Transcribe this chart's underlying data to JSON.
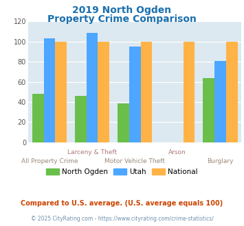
{
  "title_line1": "2019 North Ogden",
  "title_line2": "Property Crime Comparison",
  "north_ogden": [
    48,
    46,
    39,
    0,
    64
  ],
  "utah": [
    103,
    109,
    95,
    0,
    81
  ],
  "national": [
    100,
    100,
    100,
    100,
    100
  ],
  "colors": {
    "north_ogden": "#6abf4b",
    "utah": "#4da6ff",
    "national": "#ffb347"
  },
  "ylim": [
    0,
    120
  ],
  "yticks": [
    0,
    20,
    40,
    60,
    80,
    100,
    120
  ],
  "bg_color": "#dce9f0",
  "title_color": "#1a6fad",
  "xlabel_color_row1": "#b07080",
  "xlabel_color_row2": "#a08878",
  "legend_labels": [
    "North Ogden",
    "Utah",
    "National"
  ],
  "footnote1": "Compared to U.S. average. (U.S. average equals 100)",
  "footnote2": "© 2025 CityRating.com - https://www.cityrating.com/crime-statistics/",
  "footnote1_color": "#cc4400",
  "footnote2_color": "#7090b0",
  "row1_labels": [
    "",
    "Larceny & Theft",
    "",
    "Arson",
    ""
  ],
  "row2_labels": [
    "All Property Crime",
    "",
    "Motor Vehicle Theft",
    "",
    "Burglary"
  ]
}
